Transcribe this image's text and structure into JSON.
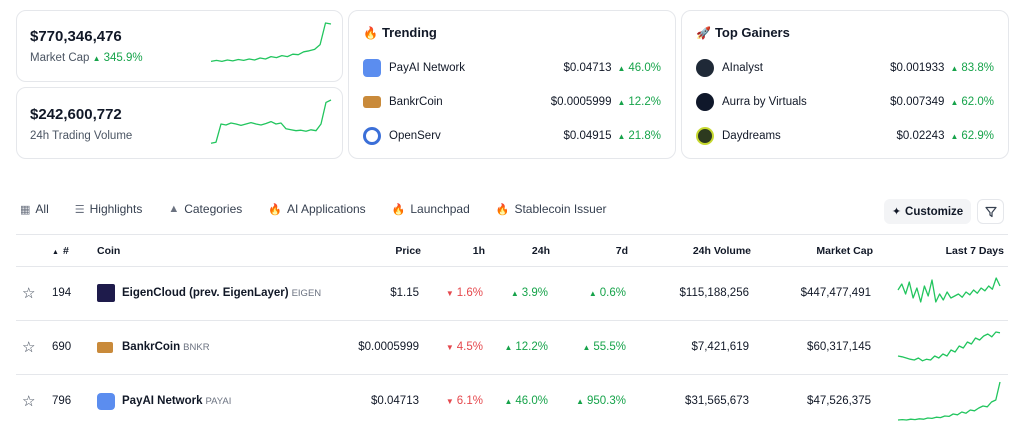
{
  "stats": [
    {
      "value": "$770,346,476",
      "label": "Market Cap",
      "change": "345.9%",
      "direction": "up",
      "spark": [
        0.2,
        0.22,
        0.2,
        0.23,
        0.21,
        0.24,
        0.22,
        0.25,
        0.23,
        0.27,
        0.25,
        0.3,
        0.28,
        0.32,
        0.3,
        0.35,
        0.34,
        0.4,
        0.42,
        0.45,
        0.55,
        1.0,
        0.98
      ]
    },
    {
      "value": "$242,600,772",
      "label": "24h Trading Volume",
      "change": "",
      "direction": "",
      "spark": [
        0.1,
        0.12,
        0.5,
        0.48,
        0.52,
        0.5,
        0.47,
        0.5,
        0.53,
        0.5,
        0.48,
        0.51,
        0.55,
        0.5,
        0.52,
        0.4,
        0.38,
        0.36,
        0.37,
        0.35,
        0.38,
        0.36,
        0.5,
        0.95,
        1.0
      ]
    }
  ],
  "trending": {
    "emoji": "🔥",
    "title": "Trending",
    "items": [
      {
        "name": "PayAI Network",
        "price": "$0.04713",
        "change": "46.0%",
        "icon": "payai-logo-icon",
        "color": "#5b8def"
      },
      {
        "name": "BankrCoin",
        "price": "$0.0005999",
        "change": "12.2%",
        "icon": "bankrcoin-logo-icon",
        "color": "#c98a3a"
      },
      {
        "name": "OpenServ",
        "price": "$0.04915",
        "change": "21.8%",
        "icon": "openserv-logo-icon",
        "color": "#3b6fd8"
      }
    ]
  },
  "gainers": {
    "emoji": "🚀",
    "title": "Top Gainers",
    "items": [
      {
        "name": "AInalyst",
        "price": "$0.001933",
        "change": "83.8%",
        "icon": "ainalyst-logo-icon",
        "color": "#1f2937"
      },
      {
        "name": "Aurra by Virtuals",
        "price": "$0.007349",
        "change": "62.0%",
        "icon": "aurra-logo-icon",
        "color": "#0f172a"
      },
      {
        "name": "Daydreams",
        "price": "$0.02243",
        "change": "62.9%",
        "icon": "daydreams-logo-icon",
        "color": "#2d3a1f"
      }
    ]
  },
  "tabs": [
    {
      "label": "All",
      "icon": "grid-icon"
    },
    {
      "label": "Highlights",
      "icon": "list-icon"
    },
    {
      "label": "Categories",
      "icon": "shapes-icon"
    },
    {
      "label": "AI Applications",
      "icon": "fire-icon"
    },
    {
      "label": "Launchpad",
      "icon": "fire-icon"
    },
    {
      "label": "Stablecoin Issuer",
      "icon": "fire-icon"
    }
  ],
  "toolbar": {
    "customize_label": "Customize"
  },
  "table": {
    "headers": {
      "rank": "#",
      "coin": "Coin",
      "price": "Price",
      "h1": "1h",
      "h24": "24h",
      "d7": "7d",
      "volume": "24h Volume",
      "mcap": "Market Cap",
      "spark": "Last 7 Days"
    },
    "rows": [
      {
        "rank": "194",
        "name": "EigenCloud (prev. EigenLayer)",
        "symbol": "EIGEN",
        "price": "$1.15",
        "h1": "1.6%",
        "h1_dir": "down",
        "h24": "3.9%",
        "h24_dir": "up",
        "d7": "0.6%",
        "d7_dir": "up",
        "volume": "$115,188,256",
        "mcap": "$447,477,491",
        "icon": "eigen-logo-icon",
        "spark": [
          0.6,
          0.75,
          0.5,
          0.8,
          0.4,
          0.65,
          0.3,
          0.7,
          0.45,
          0.85,
          0.3,
          0.5,
          0.35,
          0.55,
          0.4,
          0.45,
          0.5,
          0.42,
          0.55,
          0.48,
          0.6,
          0.52,
          0.65,
          0.58,
          0.7,
          0.62,
          0.9,
          0.7
        ]
      },
      {
        "rank": "690",
        "name": "BankrCoin",
        "symbol": "BNKR",
        "price": "$0.0005999",
        "h1": "4.5%",
        "h1_dir": "down",
        "h24": "12.2%",
        "h24_dir": "up",
        "d7": "55.5%",
        "d7_dir": "up",
        "volume": "$7,421,619",
        "mcap": "$60,317,145",
        "icon": "bankrcoin-logo-icon",
        "spark": [
          0.3,
          0.28,
          0.25,
          0.22,
          0.2,
          0.25,
          0.18,
          0.22,
          0.2,
          0.3,
          0.25,
          0.35,
          0.3,
          0.45,
          0.4,
          0.55,
          0.5,
          0.65,
          0.6,
          0.75,
          0.7,
          0.8,
          0.85,
          0.78,
          0.9,
          0.88
        ]
      },
      {
        "rank": "796",
        "name": "PayAI Network",
        "symbol": "PAYAI",
        "price": "$0.04713",
        "h1": "6.1%",
        "h1_dir": "down",
        "h24": "46.0%",
        "h24_dir": "up",
        "d7": "950.3%",
        "d7_dir": "up",
        "volume": "$31,565,673",
        "mcap": "$47,526,375",
        "icon": "payai-logo-icon",
        "spark": [
          0.05,
          0.06,
          0.05,
          0.07,
          0.06,
          0.08,
          0.07,
          0.1,
          0.09,
          0.12,
          0.11,
          0.15,
          0.14,
          0.2,
          0.18,
          0.25,
          0.22,
          0.3,
          0.28,
          0.35,
          0.4,
          0.38,
          0.5,
          0.55,
          1.0
        ]
      }
    ]
  }
}
